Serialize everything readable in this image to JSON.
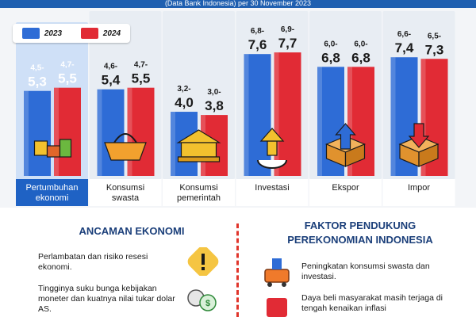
{
  "header": {
    "source": "(Data Bank Indonesia) per 30 November 2023"
  },
  "legend": [
    {
      "label": "2023",
      "color": "#2e6cd6"
    },
    {
      "label": "2024",
      "color": "#e12b35"
    }
  ],
  "chart_data": {
    "type": "bar",
    "categories": [
      "Pertumbuhan ekonomi",
      "Konsumsi swasta",
      "Konsumsi pemerintah",
      "Investasi",
      "Ekspor",
      "Impor"
    ],
    "series": [
      {
        "name": "2023",
        "values": [
          5.3,
          5.4,
          4.0,
          7.6,
          6.8,
          7.4
        ],
        "ranges": [
          "4,5-",
          "4,6-",
          "3,2-",
          "6,8-",
          "6,0-",
          "6,6-"
        ],
        "labels": [
          "5,3",
          "5,4",
          "4,0",
          "7,6",
          "6,8",
          "7,4"
        ]
      },
      {
        "name": "2024",
        "values": [
          5.5,
          5.5,
          3.8,
          7.7,
          6.8,
          7.3
        ],
        "ranges": [
          "4,7-",
          "4,7-",
          "3,0-",
          "6,9-",
          "6,0-",
          "6,5-"
        ],
        "labels": [
          "5,5",
          "5,5",
          "3,8",
          "7,7",
          "6,8",
          "7,3"
        ]
      }
    ],
    "category_labels": [
      [
        "Pertumbuhan",
        "ekonomi"
      ],
      [
        "Konsumsi",
        "swasta"
      ],
      [
        "Konsumsi",
        "pemerintah"
      ],
      [
        "Investasi"
      ],
      [
        "Ekspor"
      ],
      [
        "Impor"
      ]
    ],
    "icons": [
      "blocks-icon",
      "basket-icon",
      "bank-building-icon",
      "investment-arrow-icon",
      "export-box-icon",
      "import-box-icon"
    ],
    "highlighted_category": "Pertumbuhan ekonomi",
    "colors": {
      "bar2023": "#2e6cd6",
      "bar2024": "#e12b35",
      "highlight_panel": "#cfe0f7"
    }
  },
  "threats": {
    "title": "ANCAMAN EKONOMI",
    "items": [
      "Perlambatan dan risiko resesi ekonomi.",
      "Tingginya suku bunga kebijakan moneter dan kuatnya nilai tukar dolar AS."
    ]
  },
  "support": {
    "title_line1": "FAKTOR PENDUKUNG",
    "title_line2": "PEREKONOMIAN INDONESIA",
    "items": [
      "Peningkatan konsumsi swasta dan investasi.",
      "Daya beli masyarakat masih terjaga di tengah kenaikan inflasi"
    ]
  }
}
